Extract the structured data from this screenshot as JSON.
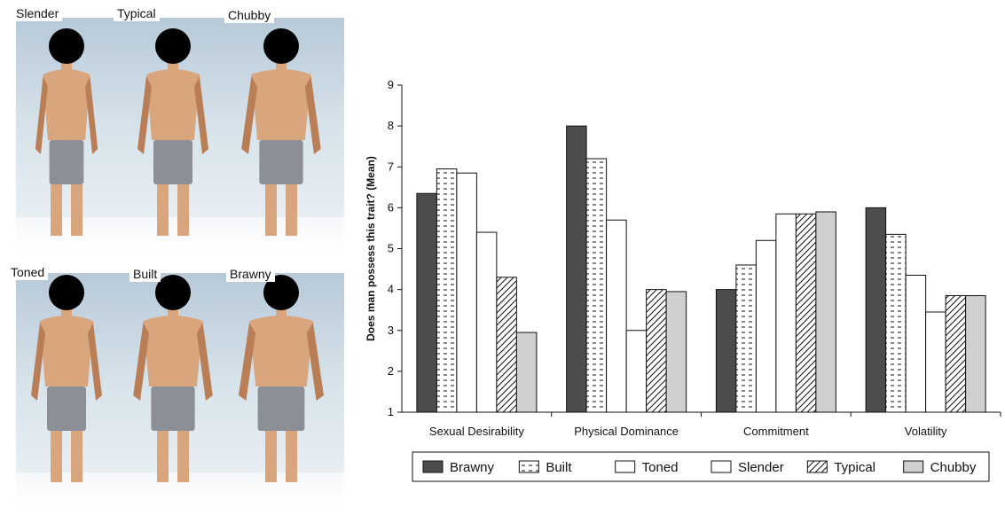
{
  "photos": {
    "labels": [
      "Slender",
      "Typical",
      "Chubby",
      "Toned",
      "Built",
      "Brawny"
    ]
  },
  "chart_data": {
    "type": "bar",
    "title": "",
    "xlabel": "",
    "ylabel": "Does man possess this trait? (Mean)",
    "ylim": [
      1,
      9
    ],
    "yticks": [
      "1",
      "2",
      "3",
      "4",
      "5",
      "6",
      "7",
      "8",
      "9"
    ],
    "categories": [
      "Sexual Desirability",
      "Physical Dominance",
      "Commitment",
      "Volatility"
    ],
    "series": [
      {
        "name": "Brawny",
        "pattern": "solid-dark",
        "values": [
          6.35,
          8.0,
          4.0,
          6.0
        ]
      },
      {
        "name": "Built",
        "pattern": "dashes",
        "values": [
          6.95,
          7.2,
          4.6,
          5.35
        ]
      },
      {
        "name": "Toned",
        "pattern": "white",
        "values": [
          6.85,
          5.7,
          5.2,
          4.35
        ]
      },
      {
        "name": "Slender",
        "pattern": "white",
        "values": [
          5.4,
          3.0,
          5.85,
          3.45
        ]
      },
      {
        "name": "Typical",
        "pattern": "diagonal",
        "values": [
          4.3,
          4.0,
          5.85,
          3.85
        ]
      },
      {
        "name": "Chubby",
        "pattern": "light-gray",
        "values": [
          2.95,
          3.95,
          5.9,
          3.85
        ]
      }
    ],
    "legend_position": "bottom",
    "grid": false,
    "colors": {
      "brawny": "#4d4d4d",
      "chubby": "#cfcfcf",
      "white": "#ffffff",
      "stroke": "#111111"
    }
  }
}
